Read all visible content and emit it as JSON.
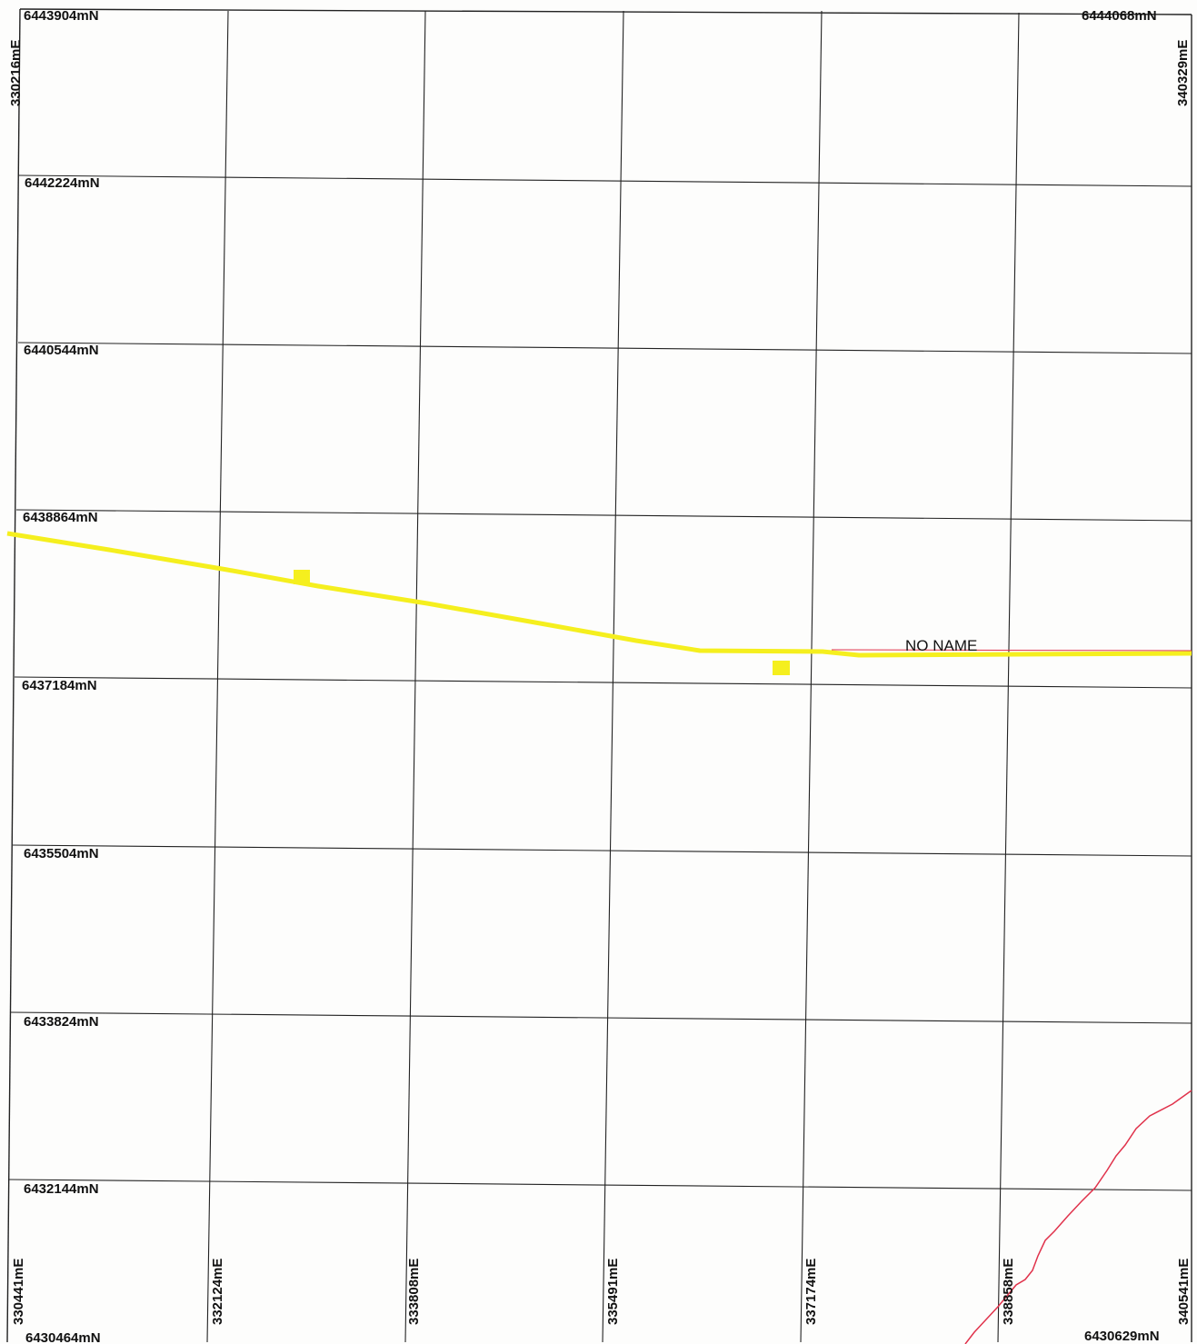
{
  "map": {
    "colors": {
      "grid_line": "#222222",
      "road": "#f5ef1e",
      "feature_marker": "#f5ef1e",
      "boundary_line": "#e0324b"
    },
    "corner_labels": {
      "top_left_northing": "6443904mN",
      "top_right_northing": "6444068mN",
      "bottom_left_northing": "6430464mN",
      "bottom_right_northing": "6430629mN",
      "top_left_easting": "330216mE",
      "top_right_easting": "340329mE"
    },
    "northing_labels": [
      "6442224mN",
      "6440544mN",
      "6438864mN",
      "6437184mN",
      "6435504mN",
      "6433824mN",
      "6432144mN"
    ],
    "easting_labels": [
      "330441mE",
      "332124mE",
      "333808mE",
      "335491mE",
      "337174mE",
      "338858mE",
      "340541mE"
    ],
    "road": {
      "name": "NO NAME"
    }
  }
}
